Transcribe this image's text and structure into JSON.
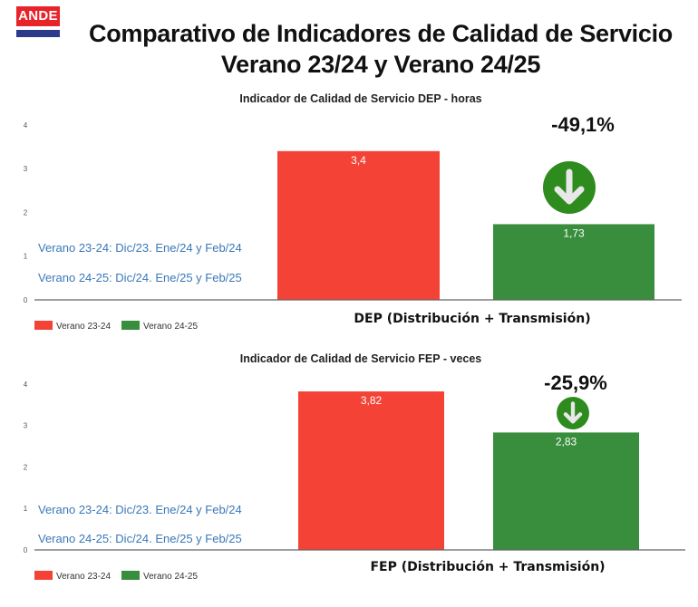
{
  "logo": {
    "text": "ANDE"
  },
  "title": {
    "line1": "Comparativo de Indicadores de Calidad de Servicio",
    "line2": "Verano 23/24 y Verano 24/25"
  },
  "colors": {
    "series_2324": "#f44336",
    "series_2425": "#388e3c",
    "arrow_circle": "#2e8b1e",
    "note_text": "#3a78b8",
    "logo_red": "#e8242b",
    "logo_blue": "#2d3a8c"
  },
  "chart_data": [
    {
      "type": "bar",
      "title": "Indicador de Calidad de Servicio DEP - horas",
      "categories": [
        "DEP (Distribución + Transmisión)"
      ],
      "series": [
        {
          "name": "Verano 23-24",
          "values": [
            3.4
          ],
          "label": "3,4"
        },
        {
          "name": "Verano 24-25",
          "values": [
            1.73
          ],
          "label": "1,73"
        }
      ],
      "ylim": [
        0,
        4
      ],
      "yticks": [
        "0",
        "1",
        "2",
        "3",
        "4"
      ],
      "xlabel": "DEP (Distribución + Transmisión)",
      "ylabel": "",
      "change_label": "-49,1%",
      "change_icon": "arrow-down-circle-icon",
      "notes": [
        "Verano 23-24: Dic/23. Ene/24 y Feb/24",
        "Verano 24-25: Dic/24. Ene/25 y Feb/25"
      ],
      "legend": [
        "Verano 23-24",
        "Verano 24-25"
      ],
      "legend_position": "bottom-left",
      "grid": false
    },
    {
      "type": "bar",
      "title": "Indicador de Calidad de Servicio FEP - veces",
      "categories": [
        "FEP (Distribución + Transmisión)"
      ],
      "series": [
        {
          "name": "Verano 23-24",
          "values": [
            3.82
          ],
          "label": "3,82"
        },
        {
          "name": "Verano 24-25",
          "values": [
            2.83
          ],
          "label": "2,83"
        }
      ],
      "ylim": [
        0,
        4
      ],
      "yticks": [
        "0",
        "1",
        "2",
        "3",
        "4"
      ],
      "xlabel": "FEP (Distribución + Transmisión)",
      "ylabel": "",
      "change_label": "-25,9%",
      "change_icon": "arrow-down-circle-icon",
      "notes": [
        "Verano 23-24: Dic/23. Ene/24 y Feb/24",
        "Verano 24-25: Dic/24. Ene/25 y Feb/25"
      ],
      "legend": [
        "Verano 23-24",
        "Verano 24-25"
      ],
      "legend_position": "bottom-left",
      "grid": false
    }
  ]
}
